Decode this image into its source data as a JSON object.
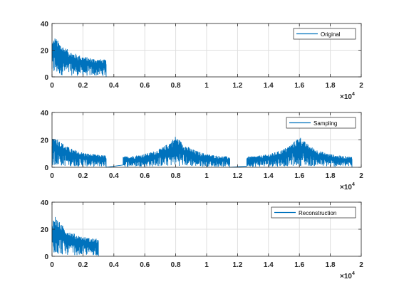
{
  "chart_data": [
    {
      "type": "line",
      "legend": "Original",
      "legend_position": "top-right",
      "grid": true,
      "xlim": [
        0,
        20000
      ],
      "ylim": [
        0,
        40
      ],
      "x_ticks": [
        0,
        2000,
        4000,
        6000,
        8000,
        10000,
        12000,
        14000,
        16000,
        18000,
        20000
      ],
      "x_tick_labels": [
        "0",
        "0.2",
        "0.4",
        "0.6",
        "0.8",
        "1",
        "1.2",
        "1.4",
        "1.6",
        "1.8",
        "2"
      ],
      "y_ticks": [
        0,
        20,
        40
      ],
      "y_tick_labels": [
        "0",
        "20",
        "40"
      ],
      "x_exponent_base": "×10",
      "x_exponent_power": "4",
      "color": "#0072BD",
      "bands": [
        {
          "x_start": 0,
          "x_end": 3500,
          "x_peak": 200,
          "peak_value": 30,
          "edge_value": 12
        }
      ]
    },
    {
      "type": "line",
      "legend": "Sampling",
      "legend_position": "top-right",
      "grid": true,
      "xlim": [
        0,
        20000
      ],
      "ylim": [
        0,
        40
      ],
      "x_ticks": [
        0,
        2000,
        4000,
        6000,
        8000,
        10000,
        12000,
        14000,
        16000,
        18000,
        20000
      ],
      "x_tick_labels": [
        "0",
        "0.2",
        "0.4",
        "0.6",
        "0.8",
        "1",
        "1.2",
        "1.4",
        "1.6",
        "1.8",
        "2"
      ],
      "y_ticks": [
        0,
        20,
        40
      ],
      "y_tick_labels": [
        "0",
        "20",
        "40"
      ],
      "x_exponent_base": "×10",
      "x_exponent_power": "4",
      "color": "#0072BD",
      "bands": [
        {
          "x_start": 0,
          "x_end": 3500,
          "x_peak": 200,
          "peak_value": 23,
          "edge_value": 8
        },
        {
          "x_start": 4600,
          "x_end": 11500,
          "x_peak": 8000,
          "peak_value": 23,
          "edge_value": 7
        },
        {
          "x_start": 12600,
          "x_end": 19400,
          "x_peak": 16000,
          "peak_value": 23,
          "edge_value": 7
        }
      ]
    },
    {
      "type": "line",
      "legend": "Reconstruction",
      "legend_position": "top-right",
      "grid": true,
      "xlim": [
        0,
        20000
      ],
      "ylim": [
        0,
        40
      ],
      "x_ticks": [
        0,
        2000,
        4000,
        6000,
        8000,
        10000,
        12000,
        14000,
        16000,
        18000,
        20000
      ],
      "x_tick_labels": [
        "0",
        "0.2",
        "0.4",
        "0.6",
        "0.8",
        "1",
        "1.2",
        "1.4",
        "1.6",
        "1.8",
        "2"
      ],
      "y_ticks": [
        0,
        20,
        40
      ],
      "y_tick_labels": [
        "0",
        "20",
        "40"
      ],
      "x_exponent_base": "×10",
      "x_exponent_power": "4",
      "color": "#0072BD",
      "bands": [
        {
          "x_start": 0,
          "x_end": 3000,
          "x_peak": 200,
          "peak_value": 30,
          "edge_value": 12
        }
      ]
    }
  ]
}
